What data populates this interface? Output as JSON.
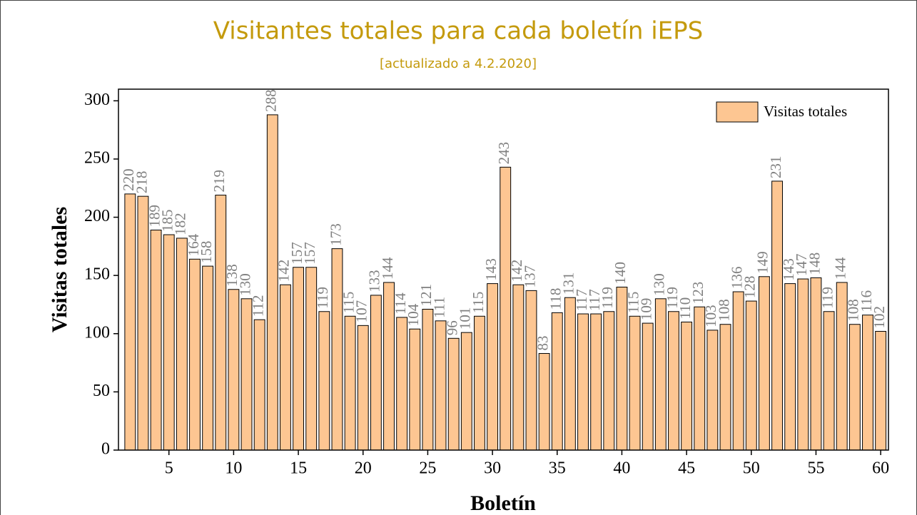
{
  "chart_data": {
    "type": "bar",
    "title": "Visitantes totales para cada boletín iEPS",
    "subtitle": "[actualizado a 4.2.2020]",
    "x_label": "Boletín",
    "y_label": "Visitas totales",
    "x": [
      2,
      3,
      4,
      5,
      6,
      7,
      8,
      9,
      10,
      11,
      12,
      13,
      14,
      15,
      16,
      17,
      18,
      19,
      20,
      21,
      22,
      23,
      24,
      25,
      26,
      27,
      28,
      29,
      30,
      31,
      32,
      33,
      34,
      35,
      36,
      37,
      38,
      39,
      40,
      41,
      42,
      43,
      44,
      45,
      46,
      47,
      48,
      49,
      50,
      51,
      52,
      53,
      54,
      55,
      56,
      57,
      58,
      59,
      60
    ],
    "series": [
      {
        "name": "Visitas totales",
        "color": "#fdc692",
        "values": [
          220,
          218,
          189,
          185,
          182,
          164,
          158,
          219,
          138,
          130,
          112,
          288,
          142,
          157,
          157,
          119,
          173,
          115,
          107,
          133,
          144,
          114,
          104,
          121,
          111,
          96,
          101,
          115,
          143,
          243,
          142,
          137,
          83,
          118,
          131,
          117,
          117,
          119,
          140,
          115,
          109,
          130,
          119,
          110,
          123,
          103,
          108,
          136,
          128,
          149,
          231,
          143,
          147,
          148,
          119,
          144,
          108,
          116,
          102
        ]
      }
    ],
    "xlim": [
      1.1,
      60.6
    ],
    "xticks": [
      5,
      10,
      15,
      20,
      25,
      30,
      35,
      40,
      45,
      50,
      55,
      60
    ],
    "ylim": [
      0,
      310
    ],
    "yticks": [
      0,
      50,
      100,
      150,
      200,
      250,
      300
    ],
    "legend": "upper right"
  }
}
